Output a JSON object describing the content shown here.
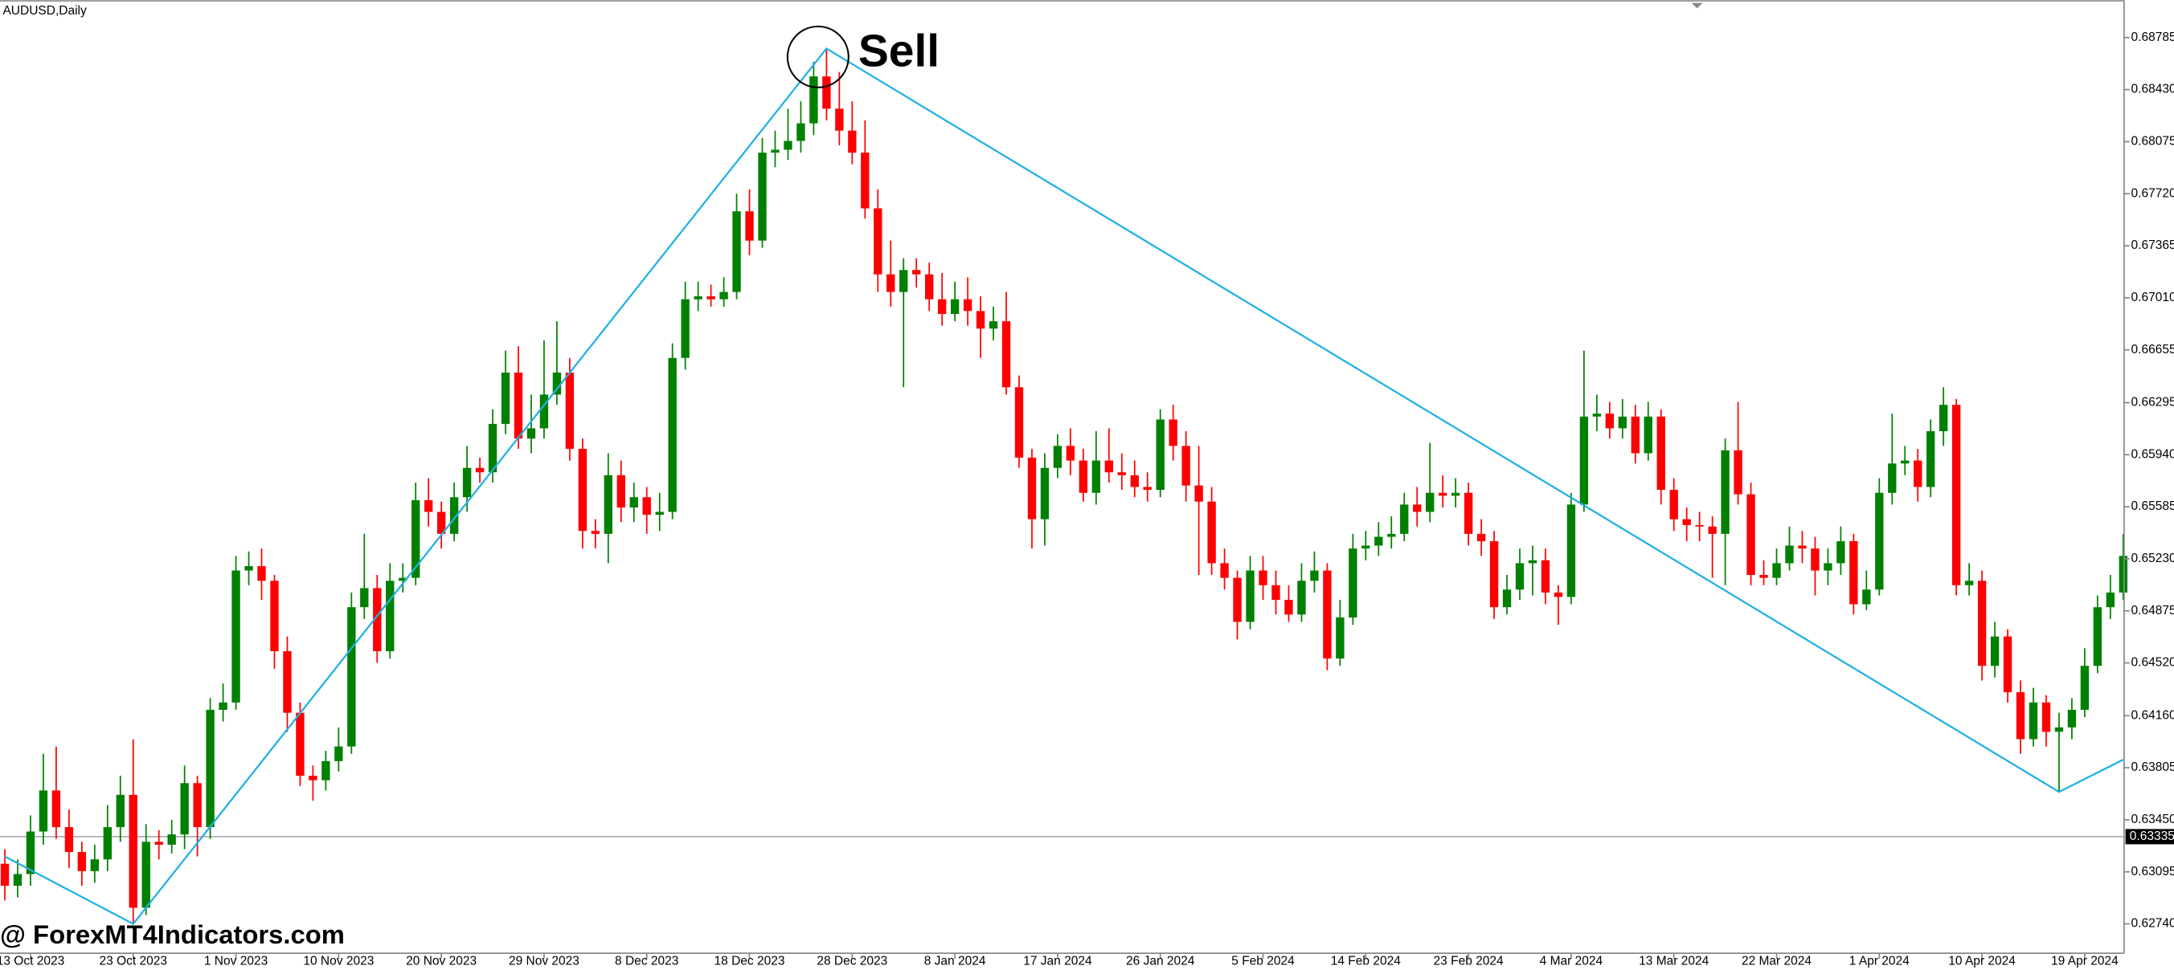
{
  "chart_data": {
    "type": "candlestick",
    "symbol_label": "AUDUSD,Daily",
    "annotation": "Sell",
    "watermark": "@ ForexMT4Indicators.com",
    "up_color": "#008000",
    "down_color": "#ff0000",
    "zigzag_color": "#1fb0e6",
    "price_line": 0.63335,
    "ylim": [
      0.6254,
      0.6904
    ],
    "yticks": [
      0.68785,
      {
        "value": 0.6843,
        "label": "0.68430"
      },
      0.68075,
      {
        "value": 0.6772,
        "label": "0.67720"
      },
      0.67365,
      {
        "value": 0.6701,
        "label": "0.67010"
      },
      0.66655,
      0.66295,
      {
        "value": 0.6594,
        "label": "0.65940"
      },
      0.65585,
      {
        "value": 0.6523,
        "label": "0.65230"
      },
      0.64875,
      {
        "value": 0.6452,
        "label": "0.64520"
      },
      {
        "value": 0.6416,
        "label": "0.64160"
      },
      0.63805,
      {
        "value": 0.6345,
        "label": "0.63450"
      },
      0.63095,
      {
        "value": 0.6274,
        "label": "0.62740"
      }
    ],
    "categories": [
      null,
      null,
      "13 Oct 2023",
      null,
      null,
      null,
      null,
      null,
      null,
      null,
      "23 Oct 2023",
      null,
      null,
      null,
      null,
      null,
      null,
      null,
      "1 Nov 2023",
      null,
      null,
      null,
      null,
      null,
      null,
      null,
      "10 Nov 2023",
      null,
      null,
      null,
      null,
      null,
      null,
      null,
      "20 Nov 2023",
      null,
      null,
      null,
      null,
      null,
      null,
      null,
      "29 Nov 2023",
      null,
      null,
      null,
      null,
      null,
      null,
      null,
      "8 Dec 2023",
      null,
      null,
      null,
      null,
      null,
      null,
      null,
      "18 Dec 2023",
      null,
      null,
      null,
      null,
      null,
      null,
      null,
      "28 Dec 2023",
      null,
      null,
      null,
      null,
      null,
      null,
      null,
      "8 Jan 2024",
      null,
      null,
      null,
      null,
      null,
      null,
      null,
      "17 Jan 2024",
      null,
      null,
      null,
      null,
      null,
      null,
      null,
      "26 Jan 2024",
      null,
      null,
      null,
      null,
      null,
      null,
      null,
      "5 Feb 2024",
      null,
      null,
      null,
      null,
      null,
      null,
      null,
      "14 Feb 2024",
      null,
      null,
      null,
      null,
      null,
      null,
      null,
      "23 Feb 2024",
      null,
      null,
      null,
      null,
      null,
      null,
      null,
      "4 Mar 2024",
      null,
      null,
      null,
      null,
      null,
      null,
      null,
      "13 Mar 2024",
      null,
      null,
      null,
      null,
      null,
      null,
      null,
      "22 Mar 2024",
      null,
      null,
      null,
      null,
      null,
      null,
      null,
      "1 Apr 2024",
      null,
      null,
      null,
      null,
      null,
      null,
      null,
      "10 Apr 2024",
      null,
      null,
      null,
      null,
      null,
      null,
      null,
      "19 Apr 2024",
      null,
      null,
      null
    ],
    "open": [
      0.6315,
      0.63,
      0.6308,
      0.6337,
      0.6365,
      0.634,
      0.6323,
      0.631,
      0.6318,
      0.634,
      0.6362,
      0.6285,
      0.633,
      0.6328,
      0.6335,
      0.637,
      0.634,
      0.642,
      0.6425,
      0.6515,
      0.6518,
      0.6508,
      0.646,
      0.6418,
      0.6375,
      0.6372,
      0.6385,
      0.6395,
      0.649,
      0.6503,
      0.646,
      0.6508,
      0.651,
      0.6563,
      0.6555,
      0.654,
      0.6565,
      0.6585,
      0.6582,
      0.6615,
      0.665,
      0.6605,
      0.6612,
      0.6635,
      0.665,
      0.6598,
      0.6542,
      0.654,
      0.658,
      0.6558,
      0.6565,
      0.6553,
      0.6555,
      0.666,
      0.67,
      0.6702,
      0.67,
      0.6705,
      0.676,
      0.674,
      0.68,
      0.6802,
      0.6808,
      0.682,
      0.6852,
      0.683,
      0.6815,
      0.68,
      0.6762,
      0.6717,
      0.6705,
      0.672,
      0.6717,
      0.67,
      0.669,
      0.67,
      0.6692,
      0.668,
      0.6685,
      0.664,
      0.6592,
      0.655,
      0.6585,
      0.66,
      0.659,
      0.6568,
      0.659,
      0.6582,
      0.658,
      0.6572,
      0.657,
      0.6618,
      0.66,
      0.6573,
      0.6562,
      0.652,
      0.651,
      0.648,
      0.6515,
      0.6505,
      0.6495,
      0.6485,
      0.6508,
      0.6515,
      0.6455,
      0.6483,
      0.653,
      0.6532,
      0.6538,
      0.654,
      0.656,
      0.6555,
      0.6568,
      0.6566,
      0.6568,
      0.654,
      0.6535,
      0.649,
      0.6502,
      0.652,
      0.6522,
      0.65,
      0.6497,
      0.656,
      0.662,
      0.6622,
      0.6612,
      0.662,
      0.6595,
      0.662,
      0.657,
      0.655,
      0.6546,
      0.6545,
      0.654,
      0.6597,
      0.6567,
      0.6512,
      0.651,
      0.652,
      0.6532,
      0.653,
      0.6515,
      0.652,
      0.6535,
      0.6492,
      0.6502,
      0.6568,
      0.6588,
      0.659,
      0.6572,
      0.661,
      0.6628,
      0.6505,
      0.6508,
      0.645,
      0.647,
      0.6432,
      0.64,
      0.6425,
      0.6405,
      0.6408,
      0.642,
      0.645,
      0.649,
      0.65
    ],
    "high": [
      0.6325,
      0.6318,
      0.6348,
      0.639,
      0.6395,
      0.6352,
      0.633,
      0.6328,
      0.6355,
      0.6375,
      0.64,
      0.6342,
      0.6338,
      0.6345,
      0.6382,
      0.6375,
      0.6428,
      0.6438,
      0.6525,
      0.6528,
      0.653,
      0.6512,
      0.647,
      0.6425,
      0.6382,
      0.6392,
      0.6408,
      0.65,
      0.654,
      0.6512,
      0.652,
      0.652,
      0.6575,
      0.6578,
      0.6562,
      0.6575,
      0.66,
      0.6592,
      0.6625,
      0.6665,
      0.6668,
      0.6635,
      0.6672,
      0.6685,
      0.666,
      0.6605,
      0.655,
      0.6595,
      0.659,
      0.6575,
      0.6572,
      0.6568,
      0.667,
      0.6712,
      0.6712,
      0.671,
      0.6715,
      0.6772,
      0.6775,
      0.681,
      0.6815,
      0.683,
      0.6835,
      0.6862,
      0.6871,
      0.6855,
      0.6835,
      0.6822,
      0.6775,
      0.674,
      0.6728,
      0.6728,
      0.6725,
      0.6718,
      0.6712,
      0.6715,
      0.6702,
      0.6695,
      0.6705,
      0.6648,
      0.6598,
      0.6595,
      0.6608,
      0.6612,
      0.6598,
      0.661,
      0.6612,
      0.6595,
      0.659,
      0.6582,
      0.6625,
      0.6628,
      0.661,
      0.66,
      0.6572,
      0.653,
      0.6515,
      0.6525,
      0.6525,
      0.6515,
      0.6505,
      0.652,
      0.6528,
      0.652,
      0.6495,
      0.654,
      0.6542,
      0.6548,
      0.6552,
      0.6568,
      0.6572,
      0.6602,
      0.658,
      0.6578,
      0.6575,
      0.655,
      0.6542,
      0.6512,
      0.653,
      0.6532,
      0.653,
      0.6505,
      0.6568,
      0.6665,
      0.6635,
      0.663,
      0.6632,
      0.6628,
      0.663,
      0.6625,
      0.6578,
      0.6558,
      0.6555,
      0.6552,
      0.6605,
      0.663,
      0.6575,
      0.6522,
      0.653,
      0.6545,
      0.6542,
      0.6538,
      0.653,
      0.6545,
      0.654,
      0.6515,
      0.6578,
      0.6622,
      0.66,
      0.6598,
      0.6618,
      0.664,
      0.6632,
      0.652,
      0.6515,
      0.648,
      0.6475,
      0.644,
      0.6435,
      0.643,
      0.6418,
      0.6428,
      0.6462,
      0.6498,
      0.6512,
      0.654
    ],
    "low": [
      0.629,
      0.6292,
      0.63,
      0.6328,
      0.6332,
      0.6312,
      0.63,
      0.6302,
      0.631,
      0.633,
      0.6274,
      0.628,
      0.6318,
      0.6322,
      0.6325,
      0.632,
      0.6332,
      0.6412,
      0.642,
      0.6505,
      0.6495,
      0.6448,
      0.6405,
      0.6368,
      0.6358,
      0.6365,
      0.6378,
      0.639,
      0.6482,
      0.6452,
      0.6455,
      0.65,
      0.6505,
      0.6545,
      0.653,
      0.6535,
      0.6555,
      0.6575,
      0.6575,
      0.6608,
      0.6598,
      0.6595,
      0.6605,
      0.6628,
      0.659,
      0.653,
      0.653,
      0.652,
      0.6548,
      0.6548,
      0.654,
      0.6542,
      0.655,
      0.6652,
      0.6692,
      0.6695,
      0.6695,
      0.67,
      0.673,
      0.6735,
      0.679,
      0.6795,
      0.68,
      0.6812,
      0.6822,
      0.6805,
      0.6792,
      0.6755,
      0.6705,
      0.6695,
      0.664,
      0.6708,
      0.6692,
      0.6682,
      0.6685,
      0.6682,
      0.666,
      0.6672,
      0.6635,
      0.6585,
      0.653,
      0.6532,
      0.6578,
      0.658,
      0.6562,
      0.656,
      0.6575,
      0.657,
      0.6565,
      0.6562,
      0.6565,
      0.659,
      0.6562,
      0.6512,
      0.6512,
      0.6502,
      0.6468,
      0.6475,
      0.6495,
      0.6485,
      0.648,
      0.648,
      0.65,
      0.6447,
      0.645,
      0.6478,
      0.6522,
      0.6525,
      0.653,
      0.6535,
      0.6545,
      0.6548,
      0.6558,
      0.6558,
      0.6532,
      0.6525,
      0.6482,
      0.6485,
      0.6495,
      0.6498,
      0.6492,
      0.6478,
      0.6492,
      0.6555,
      0.661,
      0.6605,
      0.6605,
      0.6588,
      0.659,
      0.656,
      0.6542,
      0.6535,
      0.6535,
      0.651,
      0.6505,
      0.656,
      0.6505,
      0.6505,
      0.6505,
      0.6515,
      0.652,
      0.6498,
      0.6505,
      0.6512,
      0.6485,
      0.6488,
      0.6498,
      0.656,
      0.658,
      0.6562,
      0.6565,
      0.66,
      0.6498,
      0.6498,
      0.644,
      0.6442,
      0.6425,
      0.639,
      0.6395,
      0.6395,
      0.6364,
      0.64,
      0.6415,
      0.6445,
      0.6482,
      0.6495
    ],
    "close": [
      0.63,
      0.6308,
      0.6337,
      0.6365,
      0.634,
      0.6323,
      0.631,
      0.6318,
      0.634,
      0.6362,
      0.6285,
      0.633,
      0.6328,
      0.6335,
      0.637,
      0.634,
      0.642,
      0.6425,
      0.6515,
      0.6518,
      0.6508,
      0.646,
      0.6418,
      0.6375,
      0.6372,
      0.6385,
      0.6395,
      0.649,
      0.6503,
      0.646,
      0.6508,
      0.651,
      0.6563,
      0.6555,
      0.654,
      0.6565,
      0.6585,
      0.6582,
      0.6615,
      0.665,
      0.6605,
      0.6612,
      0.6635,
      0.665,
      0.6598,
      0.6542,
      0.654,
      0.658,
      0.6558,
      0.6565,
      0.6553,
      0.6555,
      0.666,
      0.67,
      0.6702,
      0.67,
      0.6705,
      0.676,
      0.674,
      0.68,
      0.6802,
      0.6808,
      0.682,
      0.6852,
      0.683,
      0.6815,
      0.68,
      0.6762,
      0.6717,
      0.6705,
      0.672,
      0.6717,
      0.67,
      0.669,
      0.67,
      0.6692,
      0.668,
      0.6685,
      0.664,
      0.6592,
      0.655,
      0.6585,
      0.66,
      0.659,
      0.6568,
      0.659,
      0.6582,
      0.658,
      0.6572,
      0.657,
      0.6618,
      0.66,
      0.6573,
      0.6562,
      0.652,
      0.651,
      0.648,
      0.6515,
      0.6505,
      0.6495,
      0.6485,
      0.6508,
      0.6515,
      0.6455,
      0.6483,
      0.653,
      0.6532,
      0.6538,
      0.654,
      0.656,
      0.6555,
      0.6568,
      0.6566,
      0.6568,
      0.654,
      0.6535,
      0.649,
      0.6502,
      0.652,
      0.6522,
      0.65,
      0.6497,
      0.656,
      0.662,
      0.6622,
      0.6612,
      0.662,
      0.6595,
      0.662,
      0.657,
      0.655,
      0.6546,
      0.6545,
      0.654,
      0.6597,
      0.6567,
      0.6512,
      0.651,
      0.652,
      0.6532,
      0.653,
      0.6515,
      0.652,
      0.6535,
      0.6492,
      0.6502,
      0.6568,
      0.6588,
      0.659,
      0.6572,
      0.661,
      0.6628,
      0.6505,
      0.6508,
      0.645,
      0.647,
      0.6432,
      0.64,
      0.6425,
      0.6405,
      0.6408,
      0.642,
      0.645,
      0.649,
      0.65,
      0.6525
    ],
    "zigzag": {
      "x": [
        0,
        10,
        64,
        160,
        165
      ],
      "values": [
        0.632,
        0.6274,
        0.6871,
        0.6364,
        0.6386
      ]
    }
  }
}
